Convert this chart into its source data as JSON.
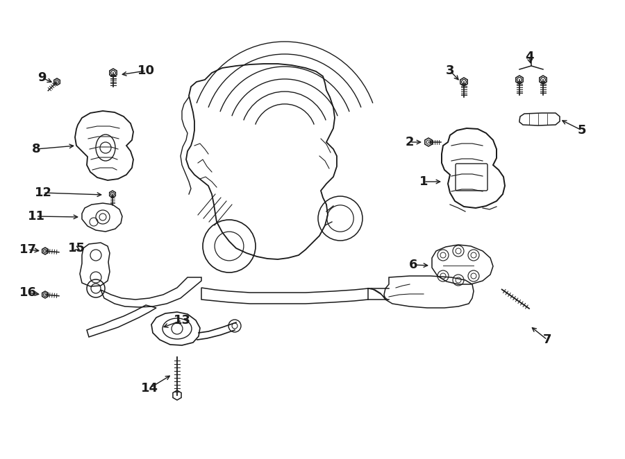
{
  "bg_color": "#ffffff",
  "line_color": "#1a1a1a",
  "fig_width": 9.0,
  "fig_height": 6.62,
  "dpi": 100,
  "label_fontsize": 13,
  "lw": 1.1
}
